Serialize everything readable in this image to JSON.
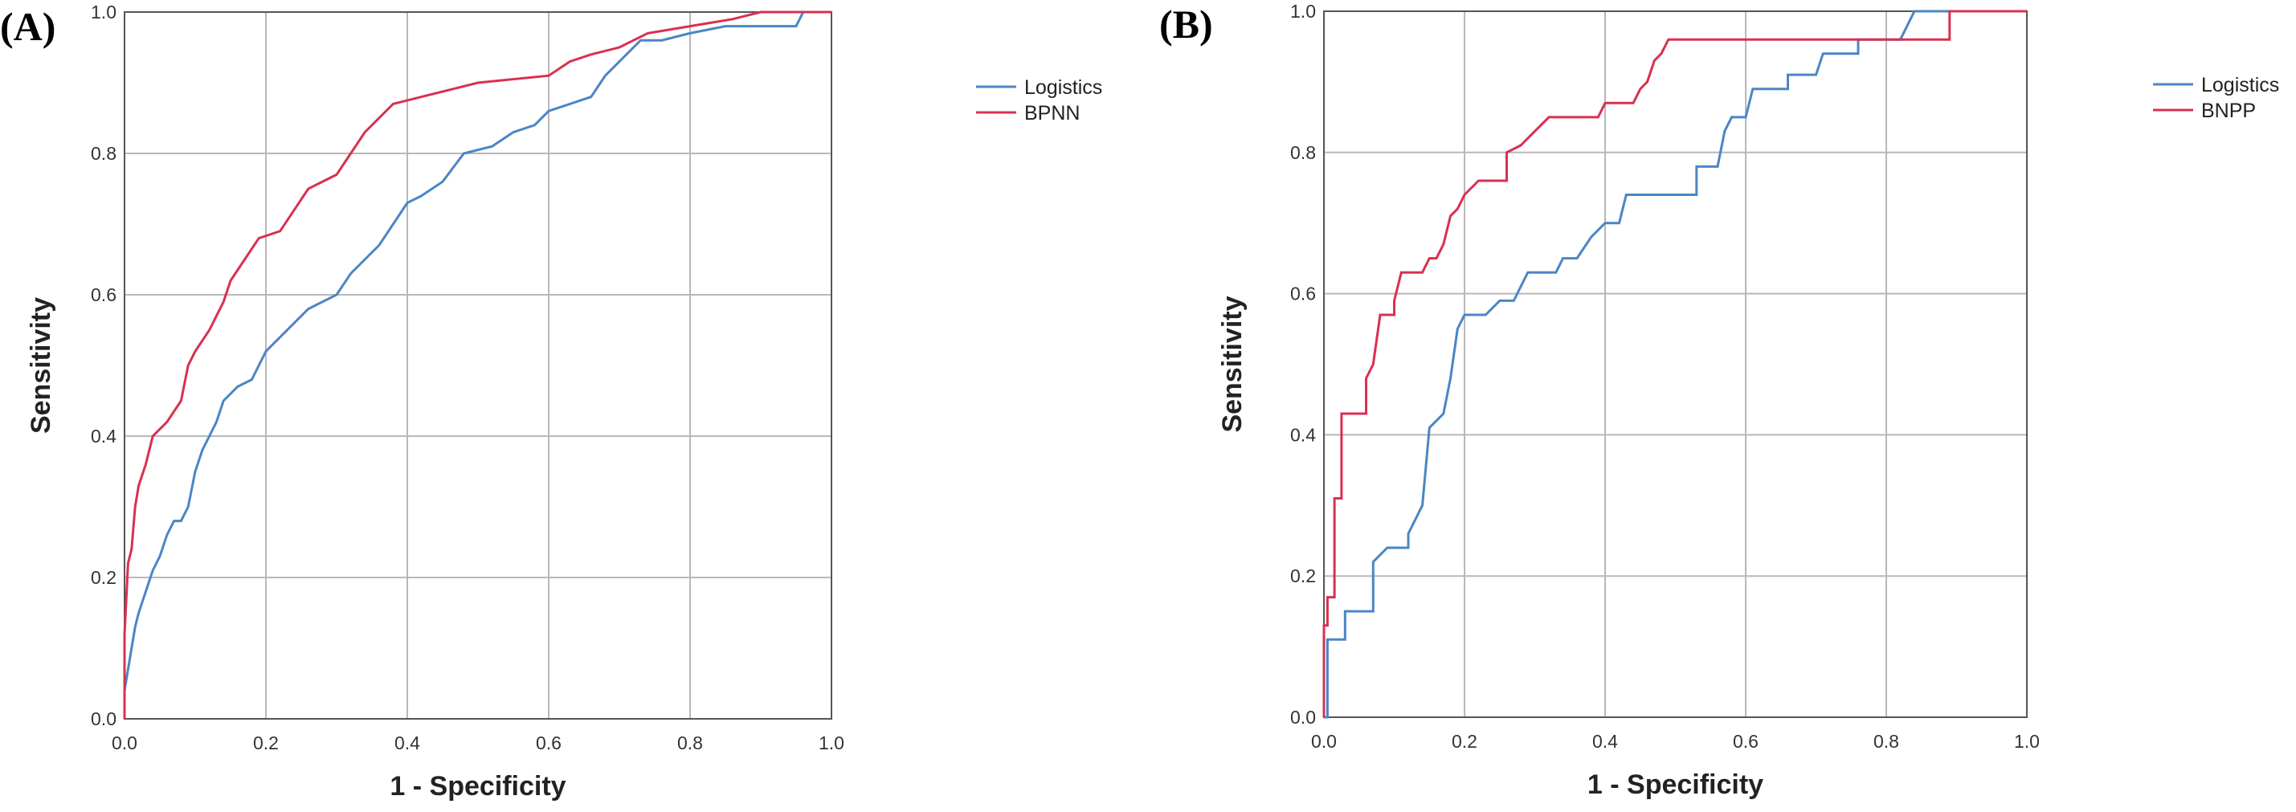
{
  "chart_data": [
    {
      "type": "line",
      "panel_label": "(A)",
      "title": "",
      "xlabel": "1 - Specificity",
      "ylabel": "Sensitivity",
      "xlim": [
        0.0,
        1.0
      ],
      "ylim": [
        0.0,
        1.0
      ],
      "xticks": [
        "0.0",
        "0.2",
        "0.4",
        "0.6",
        "0.8",
        "1.0"
      ],
      "yticks": [
        "0.0",
        "0.2",
        "0.4",
        "0.6",
        "0.8",
        "1.0"
      ],
      "grid": true,
      "legend_position": "top-right",
      "series": [
        {
          "name": "Logistics",
          "color": "#4a86c5",
          "points": [
            [
              0,
              0
            ],
            [
              0,
              0.04
            ],
            [
              0.005,
              0.07
            ],
            [
              0.01,
              0.1
            ],
            [
              0.015,
              0.13
            ],
            [
              0.02,
              0.15
            ],
            [
              0.03,
              0.18
            ],
            [
              0.04,
              0.21
            ],
            [
              0.05,
              0.23
            ],
            [
              0.06,
              0.26
            ],
            [
              0.07,
              0.28
            ],
            [
              0.08,
              0.28
            ],
            [
              0.09,
              0.3
            ],
            [
              0.1,
              0.35
            ],
            [
              0.11,
              0.38
            ],
            [
              0.12,
              0.4
            ],
            [
              0.13,
              0.42
            ],
            [
              0.14,
              0.45
            ],
            [
              0.15,
              0.46
            ],
            [
              0.16,
              0.47
            ],
            [
              0.18,
              0.48
            ],
            [
              0.2,
              0.52
            ],
            [
              0.22,
              0.54
            ],
            [
              0.24,
              0.56
            ],
            [
              0.26,
              0.58
            ],
            [
              0.3,
              0.6
            ],
            [
              0.32,
              0.63
            ],
            [
              0.34,
              0.65
            ],
            [
              0.36,
              0.67
            ],
            [
              0.38,
              0.7
            ],
            [
              0.4,
              0.73
            ],
            [
              0.42,
              0.74
            ],
            [
              0.45,
              0.76
            ],
            [
              0.48,
              0.8
            ],
            [
              0.52,
              0.81
            ],
            [
              0.55,
              0.83
            ],
            [
              0.58,
              0.84
            ],
            [
              0.6,
              0.86
            ],
            [
              0.63,
              0.87
            ],
            [
              0.66,
              0.88
            ],
            [
              0.68,
              0.91
            ],
            [
              0.7,
              0.93
            ],
            [
              0.73,
              0.96
            ],
            [
              0.76,
              0.96
            ],
            [
              0.8,
              0.97
            ],
            [
              0.85,
              0.98
            ],
            [
              0.92,
              0.98
            ],
            [
              0.95,
              0.98
            ],
            [
              0.96,
              1.0
            ],
            [
              1.0,
              1.0
            ]
          ]
        },
        {
          "name": "BPNN",
          "color": "#d9304f",
          "points": [
            [
              0,
              0
            ],
            [
              0,
              0.12
            ],
            [
              0.005,
              0.22
            ],
            [
              0.01,
              0.24
            ],
            [
              0.015,
              0.3
            ],
            [
              0.02,
              0.33
            ],
            [
              0.03,
              0.36
            ],
            [
              0.04,
              0.4
            ],
            [
              0.05,
              0.41
            ],
            [
              0.06,
              0.42
            ],
            [
              0.08,
              0.45
            ],
            [
              0.09,
              0.5
            ],
            [
              0.1,
              0.52
            ],
            [
              0.12,
              0.55
            ],
            [
              0.14,
              0.59
            ],
            [
              0.15,
              0.62
            ],
            [
              0.17,
              0.65
            ],
            [
              0.19,
              0.68
            ],
            [
              0.22,
              0.69
            ],
            [
              0.24,
              0.72
            ],
            [
              0.26,
              0.75
            ],
            [
              0.3,
              0.77
            ],
            [
              0.32,
              0.8
            ],
            [
              0.34,
              0.83
            ],
            [
              0.36,
              0.85
            ],
            [
              0.38,
              0.87
            ],
            [
              0.42,
              0.88
            ],
            [
              0.46,
              0.89
            ],
            [
              0.5,
              0.9
            ],
            [
              0.6,
              0.91
            ],
            [
              0.63,
              0.93
            ],
            [
              0.66,
              0.94
            ],
            [
              0.7,
              0.95
            ],
            [
              0.74,
              0.97
            ],
            [
              0.8,
              0.98
            ],
            [
              0.86,
              0.99
            ],
            [
              0.9,
              1.0
            ],
            [
              1.0,
              1.0
            ]
          ]
        }
      ]
    },
    {
      "type": "line",
      "panel_label": "(B)",
      "title": "",
      "xlabel": "1 - Specificity",
      "ylabel": "Sensitivity",
      "xlim": [
        0.0,
        1.0
      ],
      "ylim": [
        0.0,
        1.0
      ],
      "xticks": [
        "0.0",
        "0.2",
        "0.4",
        "0.6",
        "0.8",
        "1.0"
      ],
      "yticks": [
        "0.0",
        "0.2",
        "0.4",
        "0.6",
        "0.8",
        "1.0"
      ],
      "grid": true,
      "legend_position": "top-right",
      "series": [
        {
          "name": "Logistics",
          "color": "#4a86c5",
          "points": [
            [
              0,
              0
            ],
            [
              0.005,
              0
            ],
            [
              0.005,
              0.11
            ],
            [
              0.03,
              0.11
            ],
            [
              0.03,
              0.15
            ],
            [
              0.07,
              0.15
            ],
            [
              0.07,
              0.22
            ],
            [
              0.09,
              0.24
            ],
            [
              0.12,
              0.24
            ],
            [
              0.12,
              0.26
            ],
            [
              0.14,
              0.3
            ],
            [
              0.15,
              0.41
            ],
            [
              0.17,
              0.43
            ],
            [
              0.18,
              0.48
            ],
            [
              0.19,
              0.55
            ],
            [
              0.2,
              0.57
            ],
            [
              0.23,
              0.57
            ],
            [
              0.25,
              0.59
            ],
            [
              0.27,
              0.59
            ],
            [
              0.28,
              0.61
            ],
            [
              0.29,
              0.63
            ],
            [
              0.33,
              0.63
            ],
            [
              0.34,
              0.65
            ],
            [
              0.36,
              0.65
            ],
            [
              0.38,
              0.68
            ],
            [
              0.4,
              0.7
            ],
            [
              0.42,
              0.7
            ],
            [
              0.43,
              0.74
            ],
            [
              0.53,
              0.74
            ],
            [
              0.53,
              0.78
            ],
            [
              0.56,
              0.78
            ],
            [
              0.57,
              0.83
            ],
            [
              0.58,
              0.85
            ],
            [
              0.6,
              0.85
            ],
            [
              0.61,
              0.89
            ],
            [
              0.66,
              0.89
            ],
            [
              0.66,
              0.91
            ],
            [
              0.7,
              0.91
            ],
            [
              0.71,
              0.94
            ],
            [
              0.76,
              0.94
            ],
            [
              0.76,
              0.96
            ],
            [
              0.82,
              0.96
            ],
            [
              0.83,
              0.98
            ],
            [
              0.84,
              1.0
            ],
            [
              1.0,
              1.0
            ]
          ]
        },
        {
          "name": "BNPP",
          "color": "#d9304f",
          "points": [
            [
              0,
              0
            ],
            [
              0,
              0.13
            ],
            [
              0.005,
              0.13
            ],
            [
              0.005,
              0.17
            ],
            [
              0.015,
              0.17
            ],
            [
              0.015,
              0.31
            ],
            [
              0.025,
              0.31
            ],
            [
              0.025,
              0.43
            ],
            [
              0.06,
              0.43
            ],
            [
              0.06,
              0.48
            ],
            [
              0.07,
              0.5
            ],
            [
              0.08,
              0.57
            ],
            [
              0.1,
              0.57
            ],
            [
              0.1,
              0.59
            ],
            [
              0.11,
              0.63
            ],
            [
              0.14,
              0.63
            ],
            [
              0.15,
              0.65
            ],
            [
              0.16,
              0.65
            ],
            [
              0.17,
              0.67
            ],
            [
              0.18,
              0.71
            ],
            [
              0.19,
              0.72
            ],
            [
              0.2,
              0.74
            ],
            [
              0.22,
              0.76
            ],
            [
              0.26,
              0.76
            ],
            [
              0.26,
              0.8
            ],
            [
              0.28,
              0.81
            ],
            [
              0.3,
              0.83
            ],
            [
              0.32,
              0.85
            ],
            [
              0.39,
              0.85
            ],
            [
              0.4,
              0.87
            ],
            [
              0.44,
              0.87
            ],
            [
              0.45,
              0.89
            ],
            [
              0.46,
              0.9
            ],
            [
              0.47,
              0.93
            ],
            [
              0.48,
              0.94
            ],
            [
              0.49,
              0.96
            ],
            [
              0.89,
              0.96
            ],
            [
              0.89,
              1.0
            ],
            [
              1.0,
              1.0
            ]
          ]
        }
      ]
    }
  ]
}
